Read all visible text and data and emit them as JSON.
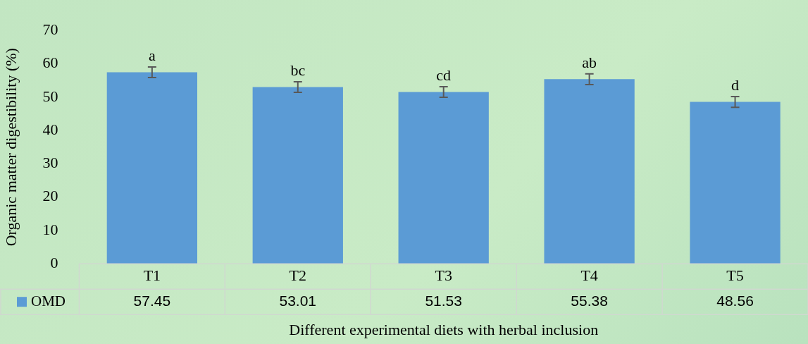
{
  "chart_data": {
    "type": "bar",
    "xlabel": "Different experimental diets with herbal inclusion",
    "ylabel": "Organic matter digestibility (%)",
    "categories": [
      "T1",
      "T2",
      "T3",
      "T4",
      "T5"
    ],
    "series": [
      {
        "name": "OMD",
        "color": "#5b9bd5",
        "values": [
          57.45,
          53.01,
          51.53,
          55.38,
          48.56
        ],
        "errors": [
          1.6,
          1.6,
          1.6,
          1.6,
          1.6
        ],
        "value_labels": [
          "57.45",
          "53.01",
          "51.53",
          "55.38",
          "48.56"
        ]
      }
    ],
    "annotations": [
      "a",
      "bc",
      "cd",
      "ab",
      "d"
    ],
    "ylim": [
      0,
      70
    ],
    "yticks": [
      0,
      10,
      20,
      30,
      40,
      50,
      60,
      70
    ],
    "grid": false,
    "legend": "bottom"
  }
}
